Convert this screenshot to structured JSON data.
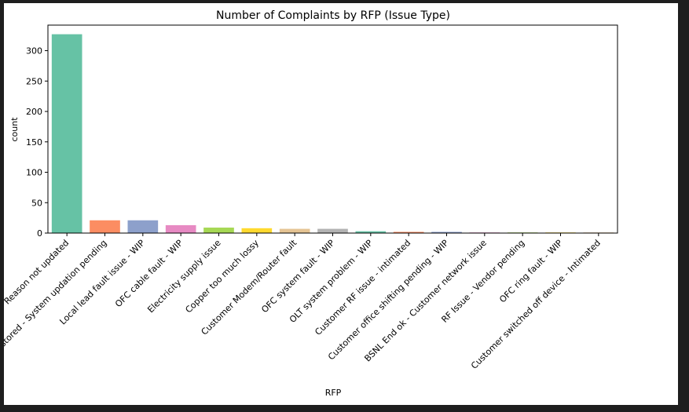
{
  "chart_data": {
    "type": "bar",
    "title": "Number of Complaints by RFP (Issue Type)",
    "xlabel": "RFP",
    "ylabel": "count",
    "ylim": [
      0,
      342
    ],
    "yticks": [
      0,
      50,
      100,
      150,
      200,
      250,
      300
    ],
    "grid": false,
    "categories": [
      "Reason not updated",
      "Fault restored - System updation pending",
      "Local lead fault issue - WIP",
      "OFC cable fault - WIP",
      "Electricity supply issue",
      "Copper too much lossy",
      "Customer Modem/Router fault",
      "OFC system fault - WIP",
      "OLT system problem  - WIP",
      "Customer RF issue - intimated",
      "Customer office shifting pending - WIP",
      "BSNL End ok - Customer network issue",
      "RF Issue - Vendor pending",
      "OFC ring fault - WIP",
      "Customer switched off device - Intimated"
    ],
    "values": [
      327,
      21,
      21,
      13,
      9,
      8,
      7,
      7,
      3,
      2,
      2,
      1,
      1,
      1,
      1
    ],
    "colors": [
      "#66c2a5",
      "#fc8d62",
      "#8da0cb",
      "#e78ac3",
      "#a6d854",
      "#ffd92f",
      "#e5c494",
      "#b3b3b3",
      "#66c2a5",
      "#fc8d62",
      "#8da0cb",
      "#e78ac3",
      "#a6d854",
      "#ffd92f",
      "#e5c494"
    ]
  }
}
